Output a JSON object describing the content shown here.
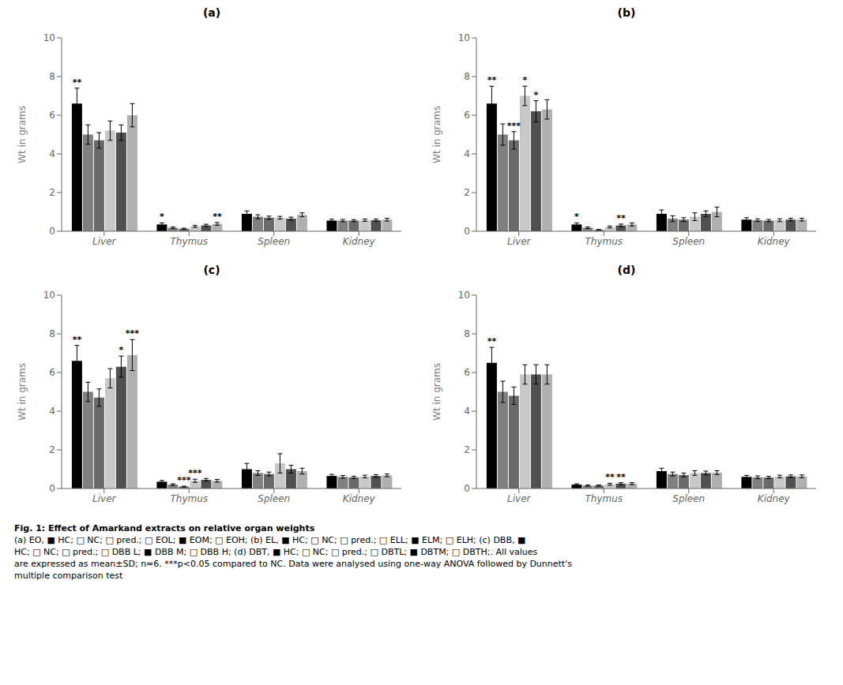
{
  "chart_data": [
    {
      "type": "bar",
      "title": "(a)",
      "ylabel": "Wt in grams",
      "categories": [
        "Liver",
        "Thymus",
        "Spleen",
        "Kidney"
      ],
      "ylim": [
        0,
        10
      ],
      "yticks": [
        0,
        2,
        4,
        6,
        8,
        10
      ],
      "grid": false,
      "series": [
        {
          "color": "#000000",
          "values": [
            6.6,
            0.35,
            0.9,
            0.55
          ],
          "errors": [
            0.8,
            0.08,
            0.15,
            0.07
          ],
          "annotations": [
            "**",
            "*",
            null,
            null
          ]
        },
        {
          "color": "#808080",
          "values": [
            5.0,
            0.18,
            0.75,
            0.55
          ],
          "errors": [
            0.5,
            0.04,
            0.1,
            0.06
          ],
          "annotations": [
            null,
            null,
            null,
            null
          ]
        },
        {
          "color": "#696969",
          "values": [
            4.7,
            0.13,
            0.7,
            0.55
          ],
          "errors": [
            0.4,
            0.03,
            0.08,
            0.05
          ],
          "annotations": [
            null,
            null,
            null,
            null
          ]
        },
        {
          "color": "#c8c8c8",
          "values": [
            5.2,
            0.25,
            0.7,
            0.57
          ],
          "errors": [
            0.5,
            0.05,
            0.07,
            0.06
          ],
          "annotations": [
            null,
            null,
            null,
            null
          ]
        },
        {
          "color": "#505050",
          "values": [
            5.1,
            0.3,
            0.65,
            0.57
          ],
          "errors": [
            0.4,
            0.06,
            0.08,
            0.06
          ],
          "annotations": [
            null,
            null,
            null,
            null
          ]
        },
        {
          "color": "#b0b0b0",
          "values": [
            6.0,
            0.38,
            0.85,
            0.6
          ],
          "errors": [
            0.6,
            0.07,
            0.1,
            0.07
          ],
          "annotations": [
            null,
            "**",
            null,
            null
          ]
        }
      ]
    },
    {
      "type": "bar",
      "title": "(b)",
      "ylabel": "Wt in grams",
      "categories": [
        "Liver",
        "Thymus",
        "Spleen",
        "Kidney"
      ],
      "ylim": [
        0,
        10
      ],
      "yticks": [
        0,
        2,
        4,
        6,
        8,
        10
      ],
      "grid": false,
      "series": [
        {
          "color": "#000000",
          "values": [
            6.6,
            0.35,
            0.9,
            0.6
          ],
          "errors": [
            0.9,
            0.08,
            0.2,
            0.1
          ],
          "annotations": [
            "**",
            "*",
            null,
            null
          ]
        },
        {
          "color": "#808080",
          "values": [
            5.0,
            0.18,
            0.65,
            0.57
          ],
          "errors": [
            0.55,
            0.04,
            0.15,
            0.07
          ],
          "annotations": [
            null,
            null,
            null,
            null
          ]
        },
        {
          "color": "#696969",
          "values": [
            4.7,
            0.07,
            0.6,
            0.55
          ],
          "errors": [
            0.45,
            0.02,
            0.1,
            0.06
          ],
          "annotations": [
            "***",
            null,
            null,
            null
          ]
        },
        {
          "color": "#c8c8c8",
          "values": [
            7.0,
            0.22,
            0.75,
            0.57
          ],
          "errors": [
            0.5,
            0.05,
            0.2,
            0.07
          ],
          "annotations": [
            "*",
            null,
            null,
            null
          ]
        },
        {
          "color": "#505050",
          "values": [
            6.2,
            0.3,
            0.9,
            0.6
          ],
          "errors": [
            0.55,
            0.07,
            0.15,
            0.07
          ],
          "annotations": [
            "*",
            "**",
            null,
            null
          ]
        },
        {
          "color": "#b0b0b0",
          "values": [
            6.3,
            0.35,
            1.0,
            0.6
          ],
          "errors": [
            0.5,
            0.08,
            0.25,
            0.07
          ],
          "annotations": [
            null,
            null,
            null,
            null
          ]
        }
      ]
    },
    {
      "type": "bar",
      "title": "(c)",
      "ylabel": "Wt in grams",
      "categories": [
        "Liver",
        "Thymus",
        "Spleen",
        "Kidney"
      ],
      "ylim": [
        0,
        10
      ],
      "yticks": [
        0,
        2,
        4,
        6,
        8,
        10
      ],
      "grid": false,
      "series": [
        {
          "color": "#000000",
          "values": [
            6.6,
            0.35,
            1.0,
            0.65
          ],
          "errors": [
            0.8,
            0.07,
            0.3,
            0.08
          ],
          "annotations": [
            "**",
            null,
            null,
            null
          ]
        },
        {
          "color": "#808080",
          "values": [
            5.0,
            0.2,
            0.8,
            0.6
          ],
          "errors": [
            0.5,
            0.04,
            0.12,
            0.07
          ],
          "annotations": [
            null,
            null,
            null,
            null
          ]
        },
        {
          "color": "#696969",
          "values": [
            4.7,
            0.1,
            0.75,
            0.58
          ],
          "errors": [
            0.45,
            0.02,
            0.1,
            0.06
          ],
          "annotations": [
            null,
            "***",
            null,
            null
          ]
        },
        {
          "color": "#c8c8c8",
          "values": [
            5.7,
            0.4,
            1.3,
            0.62
          ],
          "errors": [
            0.5,
            0.08,
            0.5,
            0.07
          ],
          "annotations": [
            null,
            "***",
            null,
            null
          ]
        },
        {
          "color": "#505050",
          "values": [
            6.3,
            0.45,
            1.0,
            0.65
          ],
          "errors": [
            0.55,
            0.07,
            0.2,
            0.07
          ],
          "annotations": [
            "*",
            null,
            null,
            null
          ]
        },
        {
          "color": "#b0b0b0",
          "values": [
            6.9,
            0.4,
            0.9,
            0.68
          ],
          "errors": [
            0.8,
            0.07,
            0.15,
            0.07
          ],
          "annotations": [
            "***",
            null,
            null,
            null
          ]
        }
      ]
    },
    {
      "type": "bar",
      "title": "(d)",
      "ylabel": "Wt in grams",
      "categories": [
        "Liver",
        "Thymus",
        "Spleen",
        "Kidney"
      ],
      "ylim": [
        0,
        10
      ],
      "yticks": [
        0,
        2,
        4,
        6,
        8,
        10
      ],
      "grid": false,
      "series": [
        {
          "color": "#000000",
          "values": [
            6.5,
            0.2,
            0.9,
            0.6
          ],
          "errors": [
            0.8,
            0.04,
            0.15,
            0.08
          ],
          "annotations": [
            "**",
            null,
            null,
            null
          ]
        },
        {
          "color": "#808080",
          "values": [
            5.0,
            0.15,
            0.75,
            0.58
          ],
          "errors": [
            0.55,
            0.03,
            0.1,
            0.07
          ],
          "annotations": [
            null,
            null,
            null,
            null
          ]
        },
        {
          "color": "#696969",
          "values": [
            4.8,
            0.15,
            0.7,
            0.57
          ],
          "errors": [
            0.45,
            0.03,
            0.1,
            0.06
          ],
          "annotations": [
            null,
            null,
            null,
            null
          ]
        },
        {
          "color": "#c8c8c8",
          "values": [
            5.9,
            0.22,
            0.8,
            0.62
          ],
          "errors": [
            0.5,
            0.05,
            0.12,
            0.07
          ],
          "annotations": [
            null,
            "**",
            null,
            null
          ]
        },
        {
          "color": "#505050",
          "values": [
            5.9,
            0.25,
            0.8,
            0.63
          ],
          "errors": [
            0.5,
            0.05,
            0.1,
            0.07
          ],
          "annotations": [
            null,
            "**",
            null,
            null
          ]
        },
        {
          "color": "#b0b0b0",
          "values": [
            5.9,
            0.25,
            0.82,
            0.63
          ],
          "errors": [
            0.5,
            0.05,
            0.1,
            0.07
          ],
          "annotations": [
            null,
            null,
            null,
            null
          ]
        }
      ]
    }
  ],
  "caption": [
    "Fig. 1: Effect of Amarkand extracts on relative organ weights",
    "(a) EO, ■ HC; □ NC; □ pred.; □ EOL; ■ EOM; □ EOH; (b) EL, ■ HC; □ NC; □ pred.; □ ELL; ■ ELM; □ ELH; (c) DBB, ■",
    "HC; □ NC; □ pred.; □ DBB L; ■ DBB M; □ DBB H; (d) DBT, ■ HC; □ NC; □ pred.; □ DBTL; ■ DBTM; □ DBTH;. All values",
    "are expressed as mean±SD; n=6. ***p<0.05 compared to NC. Data were analysed using one-way ANOVA followed by Dunnett's",
    "multiple comparison test"
  ]
}
